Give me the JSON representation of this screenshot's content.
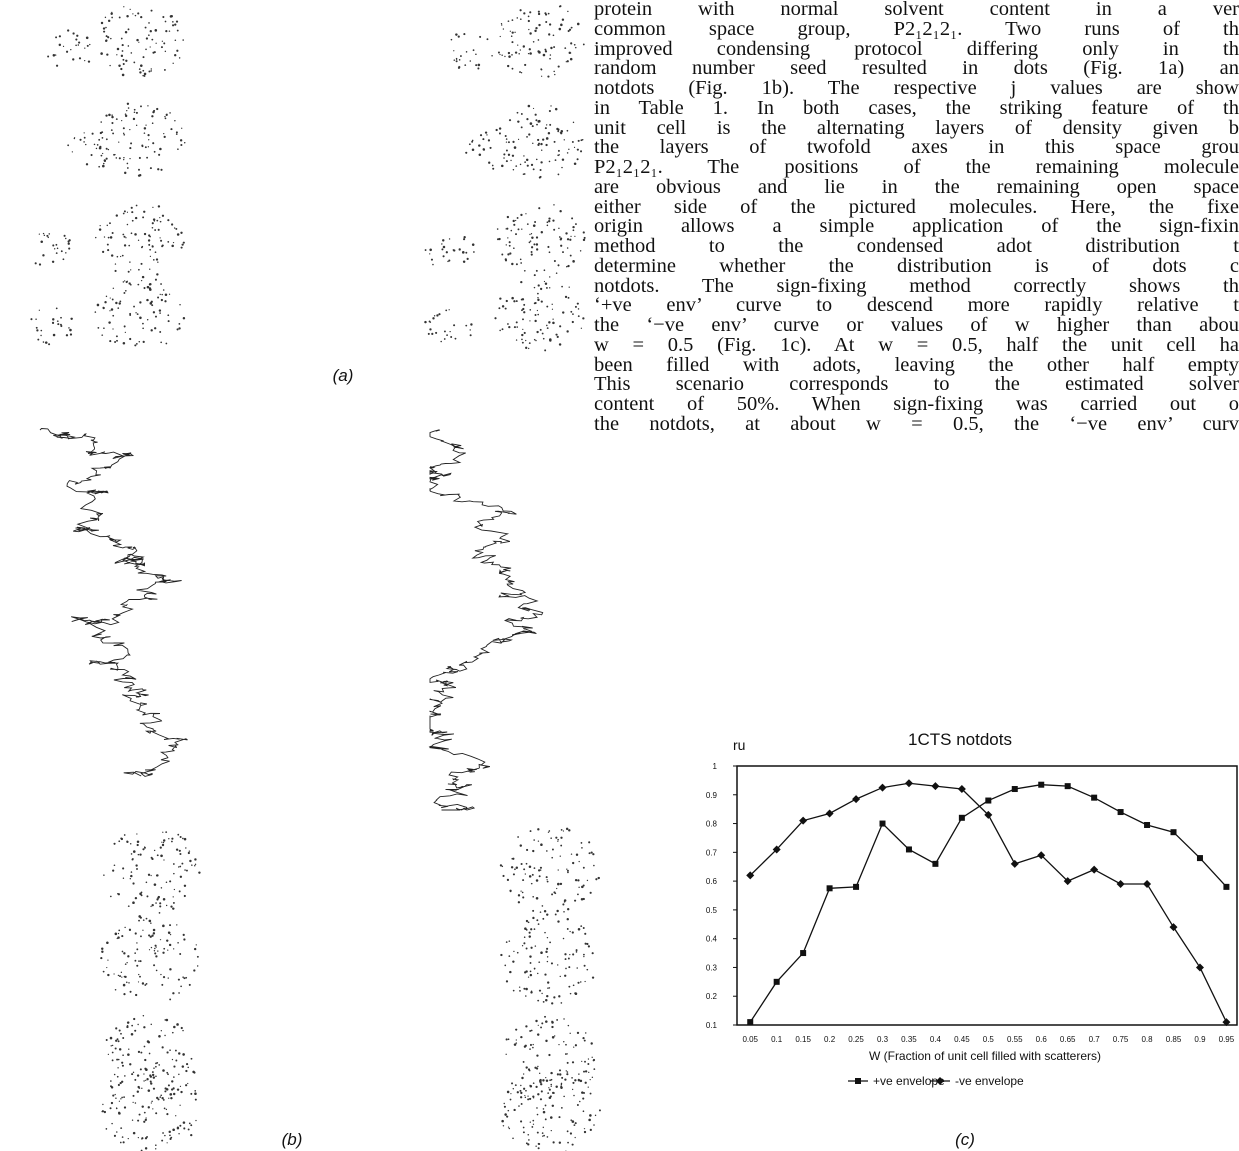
{
  "text": {
    "lines": [
      "protein with normal solvent content in a ver",
      "common space group, P2₁2₁2₁. Two runs of th",
      "improved condensing protocol differing only in th",
      "random number seed resulted in dots (Fig. 1a) an",
      "notdots (Fig. 1b). The respective j values are show",
      "in Table 1. In both cases, the striking feature of th",
      "unit cell is the alternating layers of density given b",
      "the layers of twofold axes in this space grou",
      "P2₁2₁2₁. The positions of the remaining molecule",
      "are obvious and lie in the remaining open space",
      "either side of the pictured molecules. Here, the fixe",
      "origin allows a simple application of the sign-fixin",
      "method to the condensed adot distribution t",
      "determine whether the distribution is of dots c",
      "notdots. The sign-fixing method correctly shows th",
      "‘+ve env’ curve to descend more rapidly relative t",
      "the ‘−ve env’ curve or values of w higher than abou",
      "w = 0.5 (Fig. 1c). At w = 0.5, half the unit cell ha",
      "been filled with adots, leaving the other half empty",
      "This scenario corresponds to the estimated solver",
      "content of 50%. When sign-fixing was carried out o",
      "the notdots, at about w = 0.5, the ‘−ve env’ curv"
    ]
  },
  "figure": {
    "labels": [
      "(a)",
      "(b)",
      "(c)"
    ]
  },
  "chart_data": {
    "type": "line",
    "title": "1CTS notdots",
    "y_label": "ru",
    "x_label": "W (Fraction of unit cell filled with scatterers)",
    "x": [
      0.05,
      0.1,
      0.15,
      0.2,
      0.25,
      0.3,
      0.35,
      0.4,
      0.45,
      0.5,
      0.55,
      0.6,
      0.65,
      0.7,
      0.75,
      0.8,
      0.85,
      0.9,
      0.95
    ],
    "series": [
      {
        "name": "+ve envelope",
        "color": "#111111",
        "marker": "square",
        "values": [
          0.11,
          0.25,
          0.35,
          0.575,
          0.58,
          0.8,
          0.71,
          0.66,
          0.82,
          0.88,
          0.92,
          0.935,
          0.93,
          0.89,
          0.84,
          0.795,
          0.77,
          0.68,
          0.58
        ]
      },
      {
        "name": "-ve envelope",
        "color": "#111111",
        "marker": "diamond",
        "values": [
          0.62,
          0.71,
          0.81,
          0.835,
          0.885,
          0.925,
          0.94,
          0.93,
          0.92,
          0.83,
          0.66,
          0.69,
          0.6,
          0.64,
          0.59,
          0.59,
          0.44,
          0.3,
          0.11
        ]
      }
    ],
    "xlim": [
      0.025,
      0.97
    ],
    "ylim": [
      0.1,
      1
    ],
    "xticks": [
      0.05,
      0.1,
      0.15,
      0.2,
      0.25,
      0.3,
      0.35,
      0.4,
      0.45,
      0.5,
      0.55,
      0.6,
      0.65,
      0.7,
      0.75,
      0.8,
      0.85,
      0.9,
      0.95
    ],
    "yticks": [
      0.1,
      0.2,
      0.3,
      0.4,
      0.5,
      0.6,
      0.7,
      0.8,
      0.9,
      1
    ]
  }
}
